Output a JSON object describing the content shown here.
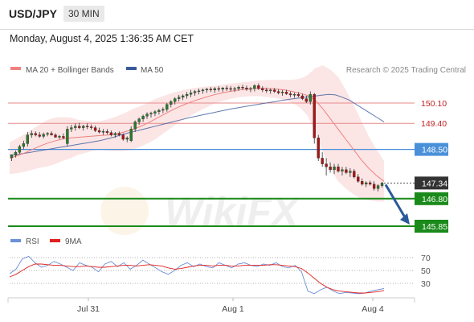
{
  "header": {
    "pair": "USD/JPY",
    "interval": "30 MIN"
  },
  "datetime": "Monday, August 4, 2025 1:36:35 AM CET",
  "legend": {
    "ma20": {
      "label": "MA 20 + Bollinger Bands",
      "color": "#f08080"
    },
    "ma50": {
      "label": "MA 50",
      "color": "#3a5a9a"
    }
  },
  "credit": "Research © 2025 Trading Central",
  "watermark": "WikiFX",
  "rsi_legend": {
    "rsi": {
      "label": "RSI",
      "color": "#6b8fd8"
    },
    "ma9": {
      "label": "9MA",
      "color": "#e02020"
    }
  },
  "colors": {
    "resistance": "#e88a8a",
    "support": "#1a8a1a",
    "pivot": "#4a90d9",
    "current": "#333333",
    "candle_up": "#2a7a2a",
    "candle_down": "#b01010",
    "arrow": "#2a5a9a"
  },
  "chart_data": [
    {
      "type": "candlestick",
      "title": "",
      "x_labels": [
        "Jul 31",
        "Aug 1",
        "Aug 4"
      ],
      "ylim": [
        145.6,
        150.6
      ],
      "levels": [
        {
          "value": 150.1,
          "label": "150.10",
          "kind": "resistance"
        },
        {
          "value": 149.4,
          "label": "149.40",
          "kind": "resistance"
        },
        {
          "value": 148.5,
          "label": "148.50",
          "kind": "pivot"
        },
        {
          "value": 147.34,
          "label": "147.34",
          "kind": "current"
        },
        {
          "value": 146.8,
          "label": "146.80",
          "kind": "support"
        },
        {
          "value": 145.85,
          "label": "145.85",
          "kind": "support"
        }
      ],
      "candles": [
        {
          "o": 148.21,
          "h": 148.33,
          "l": 148.1,
          "c": 148.3
        },
        {
          "o": 148.3,
          "h": 148.46,
          "l": 148.22,
          "c": 148.4
        },
        {
          "o": 148.4,
          "h": 148.66,
          "l": 148.35,
          "c": 148.6
        },
        {
          "o": 148.6,
          "h": 148.8,
          "l": 148.5,
          "c": 148.7
        },
        {
          "o": 148.7,
          "h": 149.1,
          "l": 148.6,
          "c": 149.0
        },
        {
          "o": 149.0,
          "h": 149.15,
          "l": 148.9,
          "c": 149.05
        },
        {
          "o": 149.05,
          "h": 149.12,
          "l": 148.95,
          "c": 149.0
        },
        {
          "o": 149.0,
          "h": 149.1,
          "l": 148.9,
          "c": 148.95
        },
        {
          "o": 148.95,
          "h": 149.08,
          "l": 148.88,
          "c": 149.02
        },
        {
          "o": 149.02,
          "h": 149.1,
          "l": 148.95,
          "c": 149.05
        },
        {
          "o": 149.05,
          "h": 149.12,
          "l": 148.98,
          "c": 149.0
        },
        {
          "o": 149.0,
          "h": 149.06,
          "l": 148.9,
          "c": 148.92
        },
        {
          "o": 148.92,
          "h": 149.0,
          "l": 148.85,
          "c": 148.95
        },
        {
          "o": 148.95,
          "h": 149.05,
          "l": 148.85,
          "c": 148.9
        },
        {
          "o": 148.7,
          "h": 149.3,
          "l": 148.6,
          "c": 149.2
        },
        {
          "o": 149.2,
          "h": 149.35,
          "l": 149.1,
          "c": 149.25
        },
        {
          "o": 149.25,
          "h": 149.4,
          "l": 149.15,
          "c": 149.3
        },
        {
          "o": 149.3,
          "h": 149.42,
          "l": 149.2,
          "c": 149.25
        },
        {
          "o": 149.25,
          "h": 149.35,
          "l": 149.15,
          "c": 149.3
        },
        {
          "o": 149.3,
          "h": 149.4,
          "l": 149.2,
          "c": 149.28
        },
        {
          "o": 149.28,
          "h": 149.36,
          "l": 149.18,
          "c": 149.25
        },
        {
          "o": 149.25,
          "h": 149.32,
          "l": 149.1,
          "c": 149.15
        },
        {
          "o": 149.15,
          "h": 149.25,
          "l": 149.05,
          "c": 149.1
        },
        {
          "o": 149.1,
          "h": 149.2,
          "l": 149.0,
          "c": 149.12
        },
        {
          "o": 149.12,
          "h": 149.2,
          "l": 149.02,
          "c": 149.08
        },
        {
          "o": 149.08,
          "h": 149.15,
          "l": 148.95,
          "c": 149.0
        },
        {
          "o": 149.0,
          "h": 149.1,
          "l": 148.9,
          "c": 149.05
        },
        {
          "o": 149.05,
          "h": 149.12,
          "l": 148.95,
          "c": 149.0
        },
        {
          "o": 149.0,
          "h": 149.05,
          "l": 148.8,
          "c": 148.85
        },
        {
          "o": 148.85,
          "h": 148.95,
          "l": 148.75,
          "c": 148.9
        },
        {
          "o": 148.8,
          "h": 149.3,
          "l": 148.75,
          "c": 149.2
        },
        {
          "o": 149.2,
          "h": 149.5,
          "l": 149.1,
          "c": 149.45
        },
        {
          "o": 149.45,
          "h": 149.6,
          "l": 149.35,
          "c": 149.55
        },
        {
          "o": 149.55,
          "h": 149.7,
          "l": 149.45,
          "c": 149.65
        },
        {
          "o": 149.65,
          "h": 149.78,
          "l": 149.55,
          "c": 149.72
        },
        {
          "o": 149.72,
          "h": 149.8,
          "l": 149.6,
          "c": 149.75
        },
        {
          "o": 149.75,
          "h": 149.85,
          "l": 149.65,
          "c": 149.8
        },
        {
          "o": 149.8,
          "h": 149.9,
          "l": 149.7,
          "c": 149.85
        },
        {
          "o": 149.85,
          "h": 149.95,
          "l": 149.75,
          "c": 149.88
        },
        {
          "o": 149.88,
          "h": 150.1,
          "l": 149.8,
          "c": 150.05
        },
        {
          "o": 150.05,
          "h": 150.2,
          "l": 149.95,
          "c": 150.15
        },
        {
          "o": 150.15,
          "h": 150.3,
          "l": 150.05,
          "c": 150.25
        },
        {
          "o": 150.25,
          "h": 150.38,
          "l": 150.15,
          "c": 150.3
        },
        {
          "o": 150.3,
          "h": 150.4,
          "l": 150.2,
          "c": 150.35
        },
        {
          "o": 150.35,
          "h": 150.48,
          "l": 150.25,
          "c": 150.4
        },
        {
          "o": 150.4,
          "h": 150.55,
          "l": 150.3,
          "c": 150.45
        },
        {
          "o": 150.45,
          "h": 150.55,
          "l": 150.35,
          "c": 150.5
        },
        {
          "o": 150.5,
          "h": 150.6,
          "l": 150.4,
          "c": 150.52
        },
        {
          "o": 150.52,
          "h": 150.6,
          "l": 150.42,
          "c": 150.55
        },
        {
          "o": 150.55,
          "h": 150.62,
          "l": 150.45,
          "c": 150.58
        },
        {
          "o": 150.58,
          "h": 150.65,
          "l": 150.48,
          "c": 150.55
        },
        {
          "o": 150.55,
          "h": 150.65,
          "l": 150.45,
          "c": 150.6
        },
        {
          "o": 150.6,
          "h": 150.68,
          "l": 150.5,
          "c": 150.58
        },
        {
          "o": 150.58,
          "h": 150.65,
          "l": 150.48,
          "c": 150.62
        },
        {
          "o": 150.62,
          "h": 150.7,
          "l": 150.52,
          "c": 150.6
        },
        {
          "o": 150.6,
          "h": 150.68,
          "l": 150.5,
          "c": 150.58
        },
        {
          "o": 150.58,
          "h": 150.66,
          "l": 150.48,
          "c": 150.6
        },
        {
          "o": 150.6,
          "h": 150.7,
          "l": 150.52,
          "c": 150.65
        },
        {
          "o": 150.65,
          "h": 150.73,
          "l": 150.55,
          "c": 150.62
        },
        {
          "o": 150.62,
          "h": 150.7,
          "l": 150.52,
          "c": 150.58
        },
        {
          "o": 150.58,
          "h": 150.66,
          "l": 150.48,
          "c": 150.6
        },
        {
          "o": 150.6,
          "h": 150.75,
          "l": 150.5,
          "c": 150.7
        },
        {
          "o": 150.7,
          "h": 150.78,
          "l": 150.55,
          "c": 150.6
        },
        {
          "o": 150.6,
          "h": 150.68,
          "l": 150.48,
          "c": 150.55
        },
        {
          "o": 150.55,
          "h": 150.63,
          "l": 150.45,
          "c": 150.52
        },
        {
          "o": 150.52,
          "h": 150.6,
          "l": 150.42,
          "c": 150.55
        },
        {
          "o": 150.55,
          "h": 150.62,
          "l": 150.45,
          "c": 150.5
        },
        {
          "o": 150.5,
          "h": 150.58,
          "l": 150.4,
          "c": 150.45
        },
        {
          "o": 150.45,
          "h": 150.55,
          "l": 150.35,
          "c": 150.48
        },
        {
          "o": 150.48,
          "h": 150.56,
          "l": 150.38,
          "c": 150.42
        },
        {
          "o": 150.42,
          "h": 150.5,
          "l": 150.3,
          "c": 150.38
        },
        {
          "o": 150.38,
          "h": 150.46,
          "l": 150.28,
          "c": 150.4
        },
        {
          "o": 150.4,
          "h": 150.48,
          "l": 150.3,
          "c": 150.35
        },
        {
          "o": 150.35,
          "h": 150.42,
          "l": 150.2,
          "c": 150.25
        },
        {
          "o": 150.25,
          "h": 150.35,
          "l": 150.1,
          "c": 150.15
        },
        {
          "o": 150.15,
          "h": 150.5,
          "l": 150.05,
          "c": 150.4
        },
        {
          "o": 150.4,
          "h": 150.45,
          "l": 148.7,
          "c": 148.9
        },
        {
          "o": 148.9,
          "h": 149.0,
          "l": 148.1,
          "c": 148.2
        },
        {
          "o": 148.2,
          "h": 148.4,
          "l": 147.9,
          "c": 148.0
        },
        {
          "o": 148.0,
          "h": 148.2,
          "l": 147.6,
          "c": 147.9
        },
        {
          "o": 147.9,
          "h": 148.05,
          "l": 147.7,
          "c": 147.8
        },
        {
          "o": 147.8,
          "h": 148.0,
          "l": 147.65,
          "c": 147.9
        },
        {
          "o": 147.9,
          "h": 148.0,
          "l": 147.7,
          "c": 147.75
        },
        {
          "o": 147.75,
          "h": 147.9,
          "l": 147.6,
          "c": 147.8
        },
        {
          "o": 147.8,
          "h": 147.9,
          "l": 147.65,
          "c": 147.7
        },
        {
          "o": 147.7,
          "h": 147.85,
          "l": 147.55,
          "c": 147.75
        },
        {
          "o": 147.75,
          "h": 147.82,
          "l": 147.5,
          "c": 147.55
        },
        {
          "o": 147.55,
          "h": 147.65,
          "l": 147.35,
          "c": 147.4
        },
        {
          "o": 147.4,
          "h": 147.5,
          "l": 147.25,
          "c": 147.3
        },
        {
          "o": 147.3,
          "h": 147.4,
          "l": 147.2,
          "c": 147.35
        },
        {
          "o": 147.35,
          "h": 147.42,
          "l": 147.25,
          "c": 147.3
        },
        {
          "o": 147.3,
          "h": 147.4,
          "l": 147.08,
          "c": 147.15
        },
        {
          "o": 147.15,
          "h": 147.3,
          "l": 147.05,
          "c": 147.25
        },
        {
          "o": 147.25,
          "h": 147.38,
          "l": 147.18,
          "c": 147.34
        }
      ],
      "ma50": [
        148.3,
        148.33,
        148.36,
        148.4,
        148.44,
        148.48,
        148.52,
        148.56,
        148.6,
        148.64,
        148.68,
        148.72,
        148.76,
        148.8,
        148.86,
        148.92,
        149.0,
        149.06,
        149.12,
        149.18,
        149.24,
        149.3,
        149.36,
        149.42,
        149.48,
        149.54,
        149.6,
        149.65,
        149.7,
        149.75,
        149.8,
        149.85,
        149.9,
        149.94,
        149.98,
        150.02,
        150.06,
        150.1,
        150.14,
        150.18,
        150.22,
        150.25,
        150.28,
        150.31,
        150.34,
        150.37,
        150.4,
        150.38,
        150.3,
        150.2,
        150.05,
        149.9,
        149.75,
        149.6,
        149.45
      ],
      "ma20": [
        148.2,
        148.28,
        148.38,
        148.5,
        148.62,
        148.72,
        148.8,
        148.86,
        148.9,
        148.92,
        148.94,
        148.96,
        148.98,
        149.0,
        149.04,
        149.1,
        149.18,
        149.28,
        149.4,
        149.54,
        149.68,
        149.82,
        149.95,
        150.06,
        150.16,
        150.25,
        150.33,
        150.4,
        150.46,
        150.51,
        150.55,
        150.58,
        150.6,
        150.61,
        150.6,
        150.58,
        150.55,
        150.5,
        150.44,
        150.36,
        150.2,
        149.9,
        149.55,
        149.2,
        148.85,
        148.5,
        148.15,
        147.85,
        147.6,
        147.4
      ],
      "bb_width": [
        0.55,
        0.6,
        0.65,
        0.7,
        0.75,
        0.8,
        0.8,
        0.75,
        0.7,
        0.6,
        0.55,
        0.5,
        0.5,
        0.55,
        0.6,
        0.65,
        0.7,
        0.7,
        0.7,
        0.7,
        0.65,
        0.6,
        0.55,
        0.5,
        0.45,
        0.4,
        0.35,
        0.3,
        0.28,
        0.26,
        0.25,
        0.25,
        0.26,
        0.28,
        0.3,
        0.32,
        0.35,
        0.4,
        0.5,
        0.7,
        1.1,
        1.5,
        1.7,
        1.8,
        1.7,
        1.55,
        1.35,
        1.1,
        0.9,
        0.7
      ],
      "projection": {
        "from": 147.34,
        "to": 145.85
      }
    },
    {
      "type": "line",
      "title": "",
      "series": [
        {
          "name": "RSI",
          "values": [
            45,
            52,
            68,
            72,
            62,
            55,
            58,
            64,
            60,
            55,
            50,
            62,
            58,
            55,
            48,
            60,
            64,
            56,
            62,
            52,
            58,
            66,
            60,
            54,
            48,
            44,
            50,
            58,
            62,
            56,
            60,
            56,
            54,
            62,
            58,
            54,
            60,
            62,
            58,
            56,
            60,
            58,
            62,
            56,
            54,
            58,
            48,
            18,
            14,
            20,
            24,
            18,
            14,
            16,
            15,
            14,
            15,
            18,
            20,
            22
          ]
        },
        {
          "name": "9MA",
          "values": [
            40,
            44,
            50,
            56,
            60,
            60,
            59,
            58,
            58,
            57,
            56,
            56,
            57,
            56,
            55,
            55,
            56,
            57,
            58,
            58,
            57,
            58,
            59,
            58,
            57,
            54,
            52,
            53,
            55,
            57,
            58,
            58,
            57,
            58,
            58,
            57,
            57,
            58,
            58,
            58,
            58,
            59,
            59,
            58,
            57,
            56,
            53,
            46,
            38,
            30,
            24,
            20,
            18,
            17,
            16,
            15,
            15,
            16,
            17,
            19
          ]
        }
      ],
      "y_ticks": [
        70,
        50,
        30
      ],
      "ylim": [
        10,
        80
      ]
    }
  ]
}
